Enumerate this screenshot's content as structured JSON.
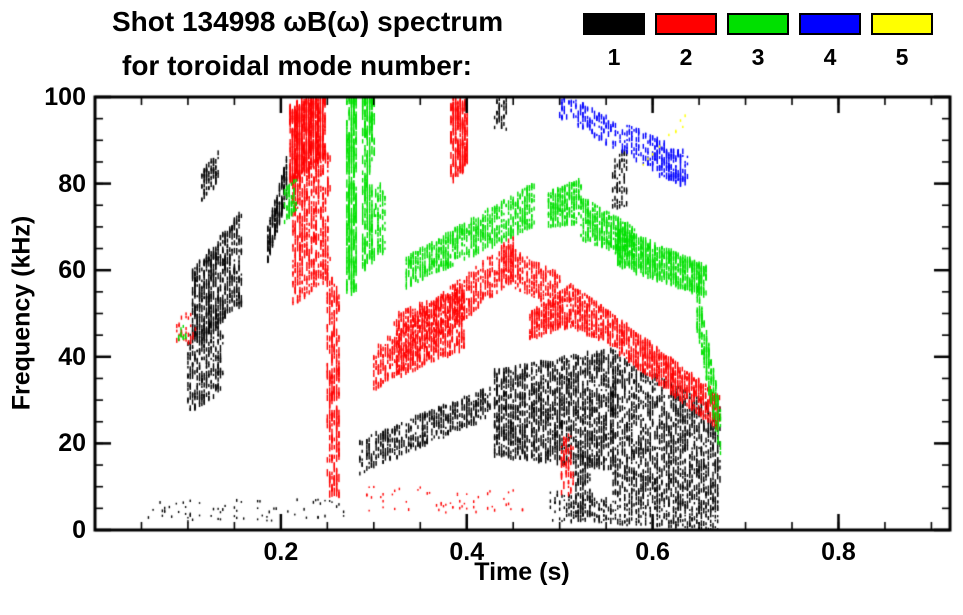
{
  "chart_data": {
    "type": "scatter",
    "title": "Shot 134998 ωB(ω) spectrum",
    "subtitle": "for toroidal mode number:",
    "xlabel": "Time (s)",
    "ylabel": "Frequency (kHz)",
    "xlim": [
      0,
      0.92
    ],
    "ylim": [
      0,
      100
    ],
    "xticks": [
      {
        "v": 0.2,
        "label": "0.2"
      },
      {
        "v": 0.4,
        "label": "0.4"
      },
      {
        "v": 0.6,
        "label": "0.6"
      },
      {
        "v": 0.8,
        "label": "0.8"
      }
    ],
    "yticks": [
      {
        "v": 0,
        "label": "0"
      },
      {
        "v": 20,
        "label": "20"
      },
      {
        "v": 40,
        "label": "40"
      },
      {
        "v": 60,
        "label": "60"
      },
      {
        "v": 80,
        "label": "80"
      },
      {
        "v": 100,
        "label": "100"
      }
    ],
    "xminor": 0.05,
    "yminor": 5,
    "grid": false,
    "legend_position": "top-right",
    "axis_color": "#000000",
    "background": "#ffffff",
    "legend": [
      {
        "label": "1",
        "color": "#000000"
      },
      {
        "label": "2",
        "color": "#ff0000"
      },
      {
        "label": "3",
        "color": "#00e000"
      },
      {
        "label": "4",
        "color": "#0000ff"
      },
      {
        "label": "5",
        "color": "#ffff00"
      }
    ],
    "series": [
      {
        "name": "mode n=1",
        "color": "#000000",
        "clusters": [
          {
            "t": [
              0.115,
              0.132
            ],
            "flo": [
              76,
              80
            ],
            "fhi": [
              83,
              87
            ],
            "n": 80
          },
          {
            "t": [
              0.105,
              0.158
            ],
            "flo": [
              42,
              52
            ],
            "fhi": [
              60,
              74
            ],
            "n": 550,
            "h": [
              2,
              7
            ]
          },
          {
            "t": [
              0.1,
              0.138
            ],
            "flo": [
              27,
              32
            ],
            "fhi": [
              45,
              52
            ],
            "n": 300
          },
          {
            "t": [
              0.055,
              0.27
            ],
            "flo": [
              2,
              2
            ],
            "fhi": [
              7,
              7
            ],
            "n": 70,
            "h": [
              1.5,
              3
            ]
          },
          {
            "t": [
              0.186,
              0.206
            ],
            "flo": [
              62,
              76
            ],
            "fhi": [
              70,
              86
            ],
            "n": 220,
            "h": [
              2,
              6
            ]
          },
          {
            "t": [
              0.285,
              0.425
            ],
            "flo": [
              13,
              26
            ],
            "fhi": [
              21,
              33
            ],
            "n": 480
          },
          {
            "t": [
              0.43,
              0.56
            ],
            "flo": [
              17,
              14
            ],
            "fhi": [
              37,
              42
            ],
            "n": 1500,
            "h": [
              2,
              6
            ]
          },
          {
            "t": [
              0.555,
              0.672
            ],
            "flo": [
              8,
              4
            ],
            "fhi": [
              41,
              28
            ],
            "n": 1300,
            "h": [
              2,
              6
            ]
          },
          {
            "t": [
              0.49,
              0.672
            ],
            "flo": [
              2,
              0
            ],
            "fhi": [
              9,
              5
            ],
            "n": 420,
            "h": [
              1.5,
              4
            ]
          },
          {
            "t": [
              0.515,
              0.535
            ],
            "flo": [
              3,
              3
            ],
            "fhi": [
              18,
              18
            ],
            "n": 120
          },
          {
            "t": [
              0.557,
              0.573
            ],
            "flo": [
              74,
              74
            ],
            "fhi": [
              88,
              88
            ],
            "n": 70,
            "h": [
              2,
              5
            ]
          },
          {
            "t": [
              0.43,
              0.443
            ],
            "flo": [
              92,
              92
            ],
            "fhi": [
              100,
              100
            ],
            "n": 40
          }
        ]
      },
      {
        "name": "mode n=2",
        "color": "#ff0000",
        "clusters": [
          {
            "t": [
              0.21,
              0.247
            ],
            "flo": [
              80,
              86
            ],
            "fhi": [
              98,
              101
            ],
            "n": 800,
            "h": [
              3,
              8
            ]
          },
          {
            "t": [
              0.213,
              0.252
            ],
            "flo": [
              52,
              58
            ],
            "fhi": [
              82,
              88
            ],
            "n": 550,
            "h": [
              2,
              7
            ]
          },
          {
            "t": [
              0.25,
              0.263
            ],
            "flo": [
              8,
              8
            ],
            "fhi": [
              60,
              55
            ],
            "n": 260,
            "h": [
              3,
              9
            ]
          },
          {
            "t": [
              0.3,
              0.452
            ],
            "flo": [
              32,
              58
            ],
            "fhi": [
              42,
              68
            ],
            "n": 750
          },
          {
            "t": [
              0.322,
              0.398
            ],
            "flo": [
              35,
              42
            ],
            "fhi": [
              50,
              56
            ],
            "n": 650,
            "h": [
              2,
              6
            ]
          },
          {
            "t": [
              0.383,
              0.401
            ],
            "flo": [
              80,
              84
            ],
            "fhi": [
              100,
              100
            ],
            "n": 260,
            "h": [
              3,
              8
            ]
          },
          {
            "t": [
              0.44,
              0.5
            ],
            "flo": [
              57,
              51
            ],
            "fhi": [
              66,
              59
            ],
            "n": 260
          },
          {
            "t": [
              0.468,
              0.512
            ],
            "flo": [
              44,
              47
            ],
            "fhi": [
              50,
              57
            ],
            "n": 300
          },
          {
            "t": [
              0.512,
              0.562
            ],
            "flo": [
              47,
              42
            ],
            "fhi": [
              57,
              49
            ],
            "n": 340
          },
          {
            "t": [
              0.562,
              0.672
            ],
            "flo": [
              41,
              23
            ],
            "fhi": [
              49,
              31
            ],
            "n": 750,
            "h": [
              2,
              6
            ]
          },
          {
            "t": [
              0.29,
              0.46
            ],
            "flo": [
              4,
              4
            ],
            "fhi": [
              10,
              10
            ],
            "n": 55,
            "h": [
              1.5,
              3
            ]
          },
          {
            "t": [
              0.502,
              0.514
            ],
            "flo": [
              8,
              8
            ],
            "fhi": [
              22,
              22
            ],
            "n": 80
          },
          {
            "t": [
              0.088,
              0.108
            ],
            "flo": [
              43,
              43
            ],
            "fhi": [
              50,
              50
            ],
            "n": 30
          }
        ]
      },
      {
        "name": "mode n=3",
        "color": "#00e000",
        "clusters": [
          {
            "t": [
              0.271,
              0.2815
            ],
            "flo": [
              55,
              55
            ],
            "fhi": [
              101,
              101
            ],
            "n": 320,
            "h": [
              4,
              10
            ]
          },
          {
            "t": [
              0.288,
              0.3
            ],
            "flo": [
              60,
              62
            ],
            "fhi": [
              101,
              101
            ],
            "n": 220,
            "h": [
              4,
              10
            ]
          },
          {
            "t": [
              0.302,
              0.312
            ],
            "flo": [
              64,
              64
            ],
            "fhi": [
              80,
              80
            ],
            "n": 80
          },
          {
            "t": [
              0.204,
              0.216
            ],
            "flo": [
              71,
              73
            ],
            "fhi": [
              79,
              81
            ],
            "n": 70
          },
          {
            "t": [
              0.335,
              0.472
            ],
            "flo": [
              56,
              70
            ],
            "fhi": [
              63,
              80
            ],
            "n": 700,
            "h": [
              2,
              6
            ]
          },
          {
            "t": [
              0.488,
              0.523
            ],
            "flo": [
              70,
              71
            ],
            "fhi": [
              78,
              81
            ],
            "n": 260
          },
          {
            "t": [
              0.523,
              0.58
            ],
            "flo": [
              67,
              63
            ],
            "fhi": [
              77,
              70
            ],
            "n": 420
          },
          {
            "t": [
              0.56,
              0.657
            ],
            "flo": [
              61,
              54
            ],
            "fhi": [
              70,
              61
            ],
            "n": 800,
            "h": [
              2,
              6
            ]
          },
          {
            "t": [
              0.648,
              0.673
            ],
            "flo": [
              46,
              17
            ],
            "fhi": [
              57,
              29
            ],
            "n": 220,
            "h": [
              2,
              6
            ]
          },
          {
            "t": [
              0.09,
              0.1
            ],
            "flo": [
              44,
              44
            ],
            "fhi": [
              48,
              48
            ],
            "n": 12
          }
        ]
      },
      {
        "name": "mode n=4",
        "color": "#0000ff",
        "clusters": [
          {
            "t": [
              0.5,
              0.638
            ],
            "flo": [
              95,
              79
            ],
            "fhi": [
              101,
              87
            ],
            "n": 260,
            "h": [
              2,
              6
            ]
          },
          {
            "t": [
              0.595,
              0.635
            ],
            "flo": [
              83,
              79
            ],
            "fhi": [
              92,
              86
            ],
            "n": 120
          }
        ]
      },
      {
        "name": "mode n=5",
        "color": "#ffff00",
        "clusters": [
          {
            "t": [
              0.59,
              0.642
            ],
            "flo": [
              84,
              95
            ],
            "fhi": [
              87,
              99
            ],
            "n": 10,
            "h": [
              2,
              3
            ]
          }
        ]
      }
    ]
  }
}
